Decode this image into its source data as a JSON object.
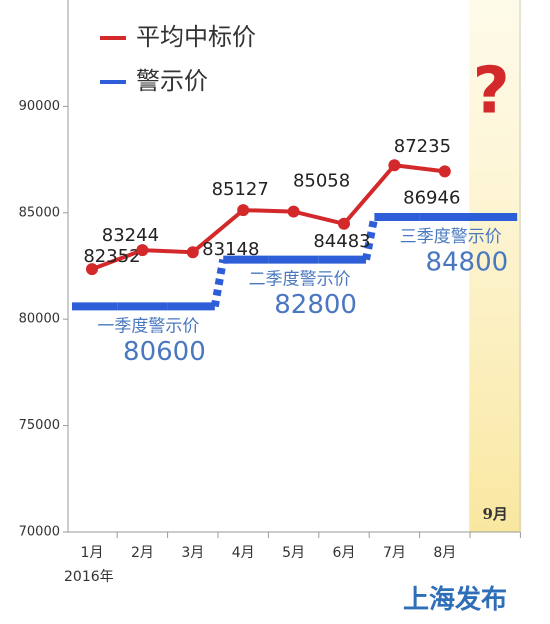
{
  "chart_data": {
    "type": "line",
    "categories": [
      "1月",
      "2月",
      "3月",
      "4月",
      "5月",
      "6月",
      "7月",
      "8月",
      "9月"
    ],
    "year_label": "2016年",
    "series": [
      {
        "name": "平均中标价",
        "color": "#d3292b",
        "values": [
          82352,
          83244,
          83148,
          85127,
          85058,
          84483,
          87235,
          86946,
          null
        ]
      },
      {
        "name": "警示价",
        "color": "#2d5ed8",
        "values": [
          80600,
          80600,
          80600,
          82800,
          82800,
          82800,
          84800,
          84800,
          84800
        ]
      }
    ],
    "quarter_labels": [
      "一季度警示价",
      "二季度警示价",
      "三季度警示价"
    ],
    "highlight_category": 8,
    "annotation": "?",
    "source": "上海发布",
    "ylim": [
      70000,
      95000
    ],
    "yticks": [
      70000,
      75000,
      80000,
      85000,
      90000
    ]
  }
}
